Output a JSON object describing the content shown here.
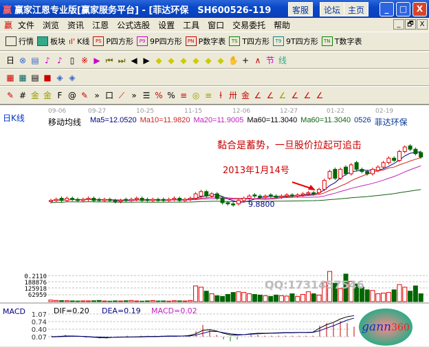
{
  "window": {
    "title": "赢家江恩专业版[赢家服务平台] - [菲达环保　SH600526-119",
    "buttons": [
      "客服",
      "论坛",
      "主页"
    ],
    "controls": [
      "_",
      "□",
      "X"
    ]
  },
  "menu": [
    "文件",
    "浏览",
    "资讯",
    "江恩",
    "公式选股",
    "设置",
    "工具",
    "窗口",
    "交易委托",
    "帮助"
  ],
  "mdi_controls": [
    "_",
    "🗗",
    "X"
  ],
  "toolbar1": [
    {
      "icon": "PS",
      "label": "P四方形"
    },
    {
      "icon": "P9",
      "label": "9P四方形"
    },
    {
      "icon": "PN",
      "label": "P数字表"
    },
    {
      "icon": "TS",
      "label": "T四方形"
    },
    {
      "icon": "T9",
      "label": "9T四方形"
    },
    {
      "icon": "TN",
      "label": "T数字表"
    }
  ],
  "toolbar1_lead": [
    {
      "icon": "grid-icon",
      "label": "行情"
    },
    {
      "icon": "blocks-icon",
      "label": "板块"
    },
    {
      "icon": "candles-icon",
      "label": "K线"
    }
  ],
  "period": "日",
  "chart": {
    "period_label": "日K线",
    "dates": [
      "09-06",
      "09-27",
      "10-25",
      "11-15",
      "12-06",
      "12-27",
      "01-22",
      "02-19"
    ],
    "indicator": "移动均线",
    "ma": [
      {
        "label": "Ma5=12.0520",
        "color": "#000080"
      },
      {
        "label": "Ma10=11.9820",
        "color": "#d02020"
      },
      {
        "label": "Ma20=11.9005",
        "color": "#c020c0"
      },
      {
        "label": "Ma60=11.3040",
        "color": "#000000"
      },
      {
        "label": "Ma60=11.3040",
        "color": "#106010"
      }
    ],
    "code": "0526",
    "name": "菲达环保",
    "annotation": "黏合是蓄势，一旦股价拉起可追击",
    "date_note": "2013年1月14号",
    "low_label": "9.8800",
    "watermark_qq": "QQ:1731457546",
    "volume_ticks": [
      "0.2110",
      "188876",
      "125918",
      "62959"
    ],
    "macd": {
      "title": "MACD",
      "dif": "DIF=0.20",
      "dea": "DEA=0.19",
      "macd": "MACD=0.02",
      "ticks": [
        "1.07",
        "0.74",
        "0.40",
        "0.07"
      ]
    },
    "logo": "gann360"
  },
  "chart_data": {
    "type": "candlestick",
    "close": [
      10.1,
      10.15,
      10.1,
      10.2,
      10.15,
      10.1,
      10.15,
      10.2,
      10.1,
      10.1,
      10.15,
      10.1,
      10.05,
      10.1,
      10.1,
      10.15,
      10.2,
      10.1,
      10.1,
      10.15,
      10.1,
      10.1,
      10.15,
      10.2,
      10.1,
      10.15,
      10.2,
      10.4,
      10.5,
      10.3,
      10.4,
      10.2,
      10.0,
      9.95,
      9.9,
      10.1,
      10.2,
      10.3,
      10.3,
      10.25,
      10.3,
      10.3,
      10.25,
      10.3,
      10.35,
      10.3,
      10.35,
      10.4,
      10.45,
      10.4,
      10.6,
      11.0,
      11.4,
      11.1,
      11.5,
      11.3,
      11.7,
      11.5,
      11.4,
      11.3,
      11.5,
      11.6,
      11.8,
      12.0,
      11.9,
      12.3,
      12.5,
      12.4,
      12.2,
      12.05
    ],
    "open": [
      10.05,
      10.1,
      10.2,
      10.1,
      10.2,
      10.15,
      10.1,
      10.15,
      10.2,
      10.15,
      10.1,
      10.15,
      10.1,
      10.05,
      10.15,
      10.1,
      10.15,
      10.2,
      10.15,
      10.1,
      10.15,
      10.15,
      10.1,
      10.15,
      10.2,
      10.1,
      10.15,
      10.2,
      10.3,
      10.5,
      10.3,
      10.4,
      10.2,
      10.0,
      9.95,
      9.95,
      10.1,
      10.2,
      10.35,
      10.3,
      10.25,
      10.35,
      10.3,
      10.25,
      10.3,
      10.35,
      10.3,
      10.35,
      10.4,
      10.45,
      10.45,
      10.6,
      11.1,
      11.5,
      11.1,
      11.6,
      11.3,
      11.8,
      11.5,
      11.4,
      11.3,
      11.45,
      11.6,
      11.8,
      12.0,
      11.9,
      12.3,
      12.55,
      12.4,
      12.25
    ],
    "volume": [
      12000,
      9000,
      8000,
      7000,
      6000,
      5000,
      6000,
      5500,
      7000,
      9000,
      5000,
      4000,
      6000,
      5000,
      7000,
      9000,
      5000,
      4000,
      6000,
      8000,
      5000,
      6000,
      4000,
      7000,
      6000,
      5000,
      9000,
      120000,
      110000,
      80000,
      60000,
      45000,
      40000,
      55000,
      70000,
      75000,
      70000,
      60000,
      55000,
      50000,
      45000,
      40000,
      50000,
      45000,
      42000,
      60000,
      40000,
      55000,
      75000,
      60000,
      50000,
      150000,
      230000,
      140000,
      100000,
      210000,
      155000,
      135000,
      110000,
      90000,
      85000,
      60000,
      65000,
      70000,
      90000,
      130000,
      110000,
      80000,
      120000,
      60000
    ],
    "dif": [
      0.07,
      0.08,
      0.1,
      0.1,
      0.09,
      0.07,
      0.05,
      0.03,
      0.02,
      0.04,
      0.05,
      0.06,
      0.06,
      0.07,
      0.08,
      0.08,
      0.09,
      0.1,
      0.1,
      0.1,
      0.12,
      0.2,
      0.35,
      0.38,
      0.32,
      0.22,
      0.15,
      0.14,
      0.16,
      0.2,
      0.22,
      0.22,
      0.23,
      0.24,
      0.25,
      0.25,
      0.26,
      0.26,
      0.27,
      0.45,
      0.6,
      0.7,
      0.85,
      0.95,
      1.0
    ],
    "dea": [
      0.06,
      0.07,
      0.08,
      0.09,
      0.09,
      0.08,
      0.06,
      0.05,
      0.04,
      0.04,
      0.05,
      0.05,
      0.06,
      0.06,
      0.07,
      0.07,
      0.08,
      0.09,
      0.09,
      0.1,
      0.1,
      0.14,
      0.22,
      0.3,
      0.3,
      0.25,
      0.2,
      0.17,
      0.16,
      0.18,
      0.2,
      0.21,
      0.22,
      0.23,
      0.24,
      0.24,
      0.25,
      0.25,
      0.26,
      0.33,
      0.45,
      0.55,
      0.68,
      0.8,
      0.89
    ],
    "ylim": [
      9.6,
      12.9
    ]
  }
}
